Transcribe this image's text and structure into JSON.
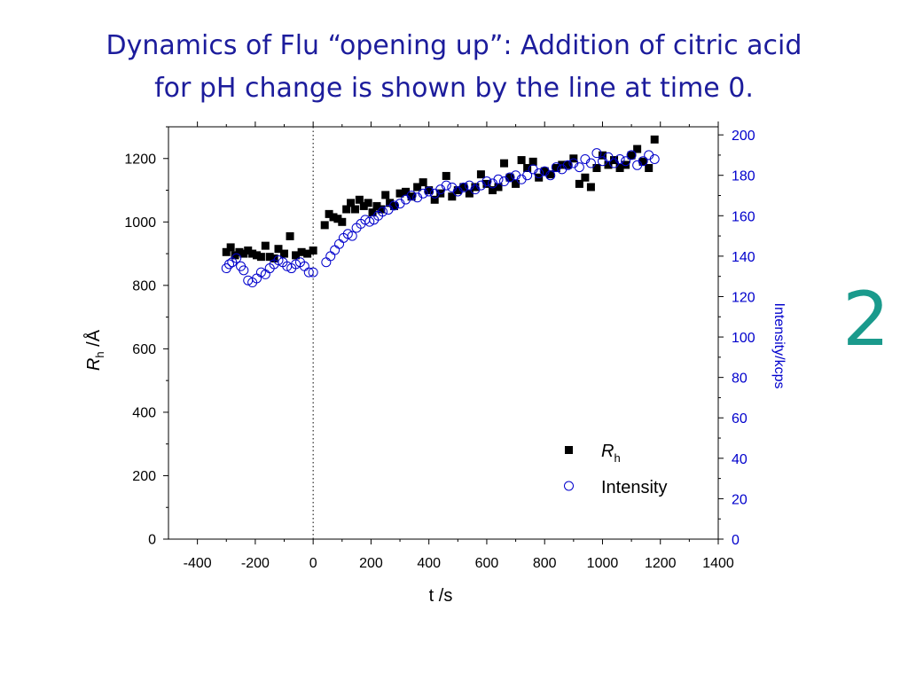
{
  "slide": {
    "title_line1": "Dynamics of Flu “opening up”:  Addition of citric acid",
    "title_line2": "for pH change is shown by the line at time 0.",
    "number": "2",
    "title_color": "#1c1c9c",
    "number_color": "#1a9a8c"
  },
  "chart_data": {
    "type": "scatter",
    "xlabel": "t /s",
    "ylabel_main": "R",
    "ylabel_sub": "h",
    "ylabel_unit": " /Å",
    "y2label": "Intensity/kcps",
    "xlim": [
      -500,
      1400
    ],
    "ylim": [
      0,
      1300
    ],
    "y2lim": [
      0,
      204
    ],
    "xticks": [
      "-400",
      "-200",
      "0",
      "200",
      "400",
      "600",
      "800",
      "1000",
      "1200",
      "1400"
    ],
    "xtick_values": [
      -400,
      -200,
      0,
      200,
      400,
      600,
      800,
      1000,
      1200,
      1400
    ],
    "yticks": [
      "0",
      "200",
      "400",
      "600",
      "800",
      "1000",
      "1200"
    ],
    "ytick_values": [
      0,
      200,
      400,
      600,
      800,
      1000,
      1200
    ],
    "y2ticks": [
      "0",
      "20",
      "40",
      "60",
      "80",
      "100",
      "120",
      "140",
      "160",
      "180",
      "200"
    ],
    "y2tick_values": [
      0,
      20,
      40,
      60,
      80,
      100,
      120,
      140,
      160,
      180,
      200
    ],
    "right_axis_color": "#0000cc",
    "vline_x": 0,
    "grid": false,
    "legend_position": "bottom-right",
    "series": [
      {
        "name": "R",
        "name_sub": "h",
        "axis": "left",
        "marker": "filled-square",
        "color": "#000000",
        "x": [
          -300,
          -285,
          -270,
          -255,
          -240,
          -225,
          -210,
          -195,
          -180,
          -165,
          -150,
          -135,
          -120,
          -100,
          -80,
          -60,
          -40,
          -20,
          0,
          40,
          55,
          70,
          85,
          100,
          115,
          130,
          145,
          160,
          175,
          190,
          205,
          220,
          235,
          250,
          265,
          280,
          300,
          320,
          340,
          360,
          380,
          400,
          420,
          440,
          460,
          480,
          500,
          520,
          540,
          560,
          580,
          600,
          620,
          640,
          660,
          680,
          700,
          720,
          740,
          760,
          780,
          800,
          820,
          840,
          860,
          880,
          900,
          920,
          940,
          960,
          980,
          1000,
          1020,
          1040,
          1060,
          1080,
          1100,
          1120,
          1140,
          1160,
          1180
        ],
        "y": [
          905,
          920,
          895,
          905,
          900,
          910,
          900,
          895,
          890,
          925,
          890,
          885,
          915,
          900,
          955,
          895,
          905,
          900,
          910,
          990,
          1025,
          1015,
          1010,
          1000,
          1040,
          1060,
          1040,
          1070,
          1050,
          1060,
          1030,
          1050,
          1040,
          1085,
          1060,
          1050,
          1090,
          1095,
          1080,
          1110,
          1125,
          1100,
          1070,
          1090,
          1145,
          1080,
          1100,
          1110,
          1090,
          1110,
          1150,
          1120,
          1100,
          1110,
          1185,
          1140,
          1120,
          1195,
          1170,
          1190,
          1140,
          1160,
          1150,
          1170,
          1180,
          1180,
          1200,
          1120,
          1140,
          1110,
          1170,
          1210,
          1180,
          1195,
          1170,
          1180,
          1210,
          1230,
          1190,
          1170,
          1260
        ]
      },
      {
        "name": "Intensity",
        "axis": "right",
        "marker": "open-circle",
        "color": "#0000cc",
        "x": [
          -300,
          -290,
          -280,
          -265,
          -250,
          -240,
          -225,
          -210,
          -195,
          -180,
          -165,
          -150,
          -135,
          -120,
          -105,
          -90,
          -75,
          -60,
          -45,
          -30,
          -15,
          0,
          45,
          60,
          75,
          90,
          105,
          120,
          135,
          150,
          165,
          180,
          195,
          210,
          225,
          240,
          260,
          280,
          300,
          320,
          340,
          360,
          380,
          400,
          420,
          440,
          460,
          480,
          500,
          520,
          540,
          560,
          580,
          600,
          620,
          640,
          660,
          680,
          700,
          720,
          740,
          760,
          780,
          800,
          820,
          840,
          860,
          880,
          900,
          920,
          940,
          960,
          980,
          1000,
          1020,
          1040,
          1060,
          1080,
          1100,
          1120,
          1140,
          1160,
          1180
        ],
        "y": [
          134,
          136,
          137,
          139,
          135,
          133,
          128,
          127,
          129,
          132,
          131,
          134,
          136,
          138,
          137,
          135,
          134,
          136,
          137,
          135,
          132,
          132,
          137,
          140,
          143,
          146,
          149,
          151,
          150,
          154,
          156,
          158,
          157,
          158,
          160,
          162,
          163,
          165,
          166,
          168,
          170,
          169,
          171,
          172,
          171,
          173,
          175,
          174,
          172,
          174,
          175,
          173,
          175,
          177,
          176,
          178,
          177,
          179,
          180,
          178,
          180,
          183,
          181,
          182,
          180,
          184,
          183,
          185,
          186,
          184,
          188,
          186,
          191,
          187,
          189,
          186,
          188,
          187,
          190,
          185,
          187,
          190,
          188
        ]
      }
    ]
  }
}
